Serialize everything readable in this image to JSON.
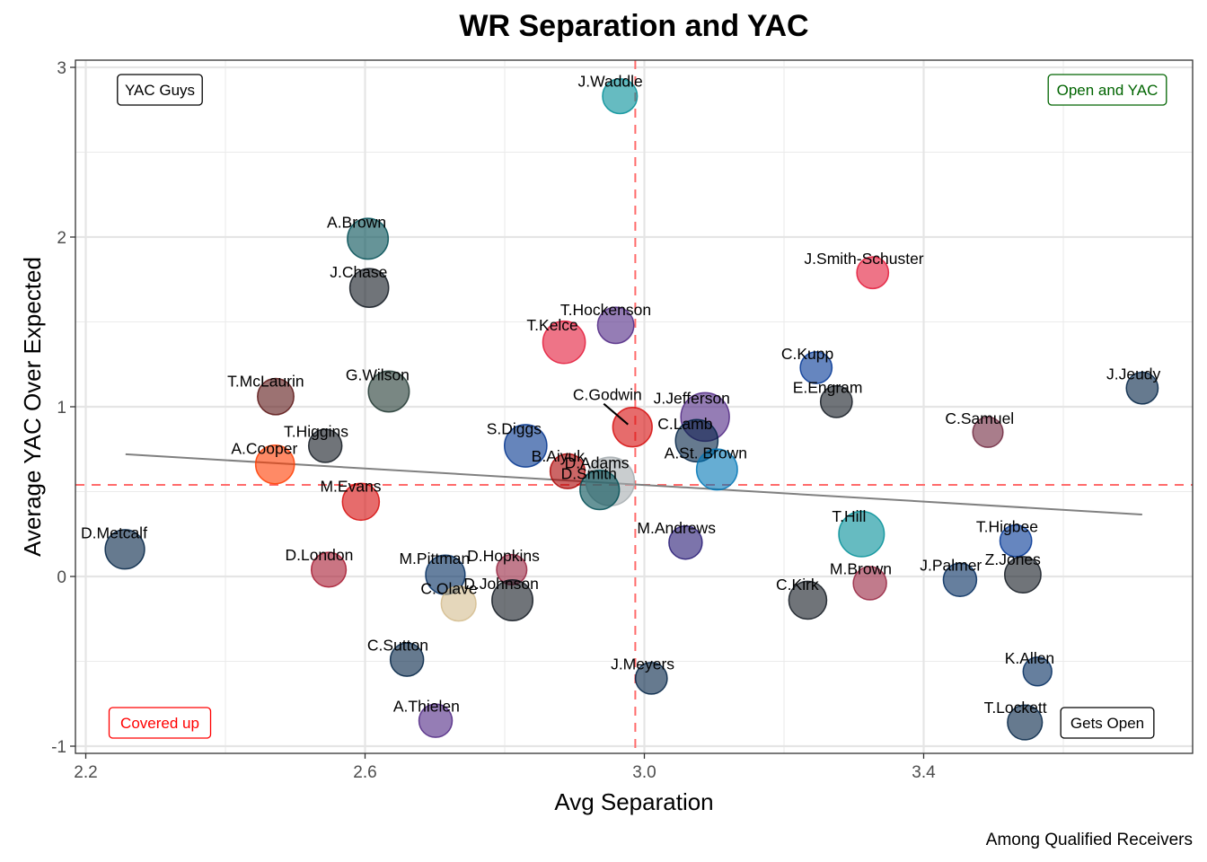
{
  "chart_data": {
    "type": "scatter",
    "title": "WR Separation and YAC",
    "xlabel": "Avg Separation",
    "ylabel": "Average YAC Over Expected",
    "caption": "Among Qualified Receivers",
    "xlim": [
      2.15,
      3.75
    ],
    "ylim": [
      -1.05,
      3.05
    ],
    "x_ticks": [
      2.2,
      2.6,
      3.0,
      3.4
    ],
    "x_tick_labels": [
      "2.2",
      "2.6",
      "3.0",
      "3.4"
    ],
    "x_minor_ticks": [
      2.4,
      2.8,
      3.2,
      3.6
    ],
    "y_ticks": [
      -1,
      0,
      1,
      2,
      3
    ],
    "y_tick_labels": [
      "-1",
      "0",
      "1",
      "2",
      "3"
    ],
    "y_minor_ticks": [
      -0.5,
      0.5,
      1.5,
      2.5
    ],
    "grid": true,
    "reference_lines": {
      "vertical_mean_separation": 2.987,
      "horizontal_mean_yac": 0.54,
      "color": "#ff6b6b"
    },
    "trend_line": {
      "x": [
        2.257,
        3.713
      ],
      "y": [
        0.72,
        0.365
      ],
      "color": "#808080"
    },
    "quadrant_labels": [
      {
        "text": "YAC Guys",
        "position": "top-left",
        "color": "#000000"
      },
      {
        "text": "Open and YAC",
        "position": "top-right",
        "color": "#006400"
      },
      {
        "text": "Covered up",
        "position": "bottom-left",
        "color": "#ff0000"
      },
      {
        "text": "Gets Open",
        "position": "bottom-right",
        "color": "#000000"
      }
    ],
    "size_encoding": "relative point size (larger = more volume)",
    "points": [
      {
        "name": "J.Waddle",
        "x": 2.965,
        "y": 2.83,
        "size": 0.55,
        "color": "#008e97"
      },
      {
        "name": "A.Brown",
        "x": 2.604,
        "y": 1.99,
        "size": 0.75,
        "color": "#004c54"
      },
      {
        "name": "J.Chase",
        "x": 2.606,
        "y": 1.7,
        "size": 0.68,
        "color": "#101820"
      },
      {
        "name": "J.Smith-Schuster",
        "x": 3.327,
        "y": 1.79,
        "size": 0.45,
        "color": "#e31837"
      },
      {
        "name": "T.Hockenson",
        "x": 2.959,
        "y": 1.48,
        "size": 0.6,
        "color": "#4f2683"
      },
      {
        "name": "T.Kelce",
        "x": 2.885,
        "y": 1.38,
        "size": 0.8,
        "color": "#e31837"
      },
      {
        "name": "C.Kupp",
        "x": 3.246,
        "y": 1.23,
        "size": 0.45,
        "color": "#003594"
      },
      {
        "name": "J.Jeudy",
        "x": 3.713,
        "y": 1.11,
        "size": 0.45,
        "color": "#002244"
      },
      {
        "name": "T.McLaurin",
        "x": 2.472,
        "y": 1.06,
        "size": 0.6,
        "color": "#5a1414"
      },
      {
        "name": "G.Wilson",
        "x": 2.634,
        "y": 1.09,
        "size": 0.75,
        "color": "#203731"
      },
      {
        "name": "E.Engram",
        "x": 3.275,
        "y": 1.03,
        "size": 0.45,
        "color": "#101820"
      },
      {
        "name": "J.Jefferson",
        "x": 3.087,
        "y": 0.94,
        "size": 1.0,
        "color": "#4f2683"
      },
      {
        "name": "C.Godwin",
        "x": 2.983,
        "y": 0.88,
        "size": 0.7,
        "color": "#d50a0a",
        "label_offset": "top-left-with-leader"
      },
      {
        "name": "C.Samuel",
        "x": 3.492,
        "y": 0.85,
        "size": 0.4,
        "color": "#6f263d"
      },
      {
        "name": "C.Lamb",
        "x": 3.075,
        "y": 0.8,
        "size": 0.8,
        "color": "#002244"
      },
      {
        "name": "T.Higgins",
        "x": 2.543,
        "y": 0.77,
        "size": 0.5,
        "color": "#101820"
      },
      {
        "name": "S.Diggs",
        "x": 2.83,
        "y": 0.77,
        "size": 0.8,
        "color": "#00338d"
      },
      {
        "name": "A.Cooper",
        "x": 2.471,
        "y": 0.66,
        "size": 0.68,
        "color": "#ff3c00"
      },
      {
        "name": "A.St. Brown",
        "x": 3.104,
        "y": 0.63,
        "size": 0.75,
        "color": "#0076b6"
      },
      {
        "name": "B.Aiyuk",
        "x": 2.89,
        "y": 0.62,
        "size": 0.55,
        "color": "#aa0000"
      },
      {
        "name": "D.Adams",
        "x": 2.951,
        "y": 0.56,
        "size": 1.0,
        "color": "#a5acaf"
      },
      {
        "name": "D.Smith",
        "x": 2.936,
        "y": 0.51,
        "size": 0.7,
        "color": "#004c54"
      },
      {
        "name": "M.Evans",
        "x": 2.594,
        "y": 0.44,
        "size": 0.62,
        "color": "#d50a0a"
      },
      {
        "name": "T.Hill",
        "x": 3.311,
        "y": 0.25,
        "size": 0.9,
        "color": "#008e97"
      },
      {
        "name": "M.Andrews",
        "x": 3.059,
        "y": 0.2,
        "size": 0.5,
        "color": "#241773"
      },
      {
        "name": "D.Metcalf",
        "x": 2.256,
        "y": 0.16,
        "size": 0.7,
        "color": "#002244"
      },
      {
        "name": "T.Higbee",
        "x": 3.532,
        "y": 0.21,
        "size": 0.45,
        "color": "#003594"
      },
      {
        "name": "D.London",
        "x": 2.548,
        "y": 0.04,
        "size": 0.55,
        "color": "#a71930"
      },
      {
        "name": "D.Hopkins",
        "x": 2.81,
        "y": 0.04,
        "size": 0.4,
        "color": "#97233f"
      },
      {
        "name": "M.Pittman",
        "x": 2.715,
        "y": 0.01,
        "size": 0.7,
        "color": "#002c5f"
      },
      {
        "name": "Z.Jones",
        "x": 3.542,
        "y": 0.01,
        "size": 0.6,
        "color": "#101820"
      },
      {
        "name": "J.Palmer",
        "x": 3.452,
        "y": -0.02,
        "size": 0.5,
        "color": "#002a5e"
      },
      {
        "name": "M.Brown",
        "x": 3.323,
        "y": -0.04,
        "size": 0.5,
        "color": "#97233f"
      },
      {
        "name": "D.Johnson",
        "x": 2.811,
        "y": -0.14,
        "size": 0.75,
        "color": "#101820"
      },
      {
        "name": "C.Kirk",
        "x": 3.234,
        "y": -0.14,
        "size": 0.65,
        "color": "#101820"
      },
      {
        "name": "C.Olave",
        "x": 2.734,
        "y": -0.16,
        "size": 0.55,
        "color": "#d3bc8d"
      },
      {
        "name": "C.Sutton",
        "x": 2.66,
        "y": -0.49,
        "size": 0.5,
        "color": "#002244"
      },
      {
        "name": "J.Meyers",
        "x": 3.01,
        "y": -0.6,
        "size": 0.45,
        "color": "#002244"
      },
      {
        "name": "K.Allen",
        "x": 3.563,
        "y": -0.56,
        "size": 0.35,
        "color": "#002a5e"
      },
      {
        "name": "T.Lockett",
        "x": 3.545,
        "y": -0.86,
        "size": 0.55,
        "color": "#002244"
      },
      {
        "name": "A.Thielen",
        "x": 2.701,
        "y": -0.85,
        "size": 0.5,
        "color": "#4f2683"
      }
    ]
  }
}
